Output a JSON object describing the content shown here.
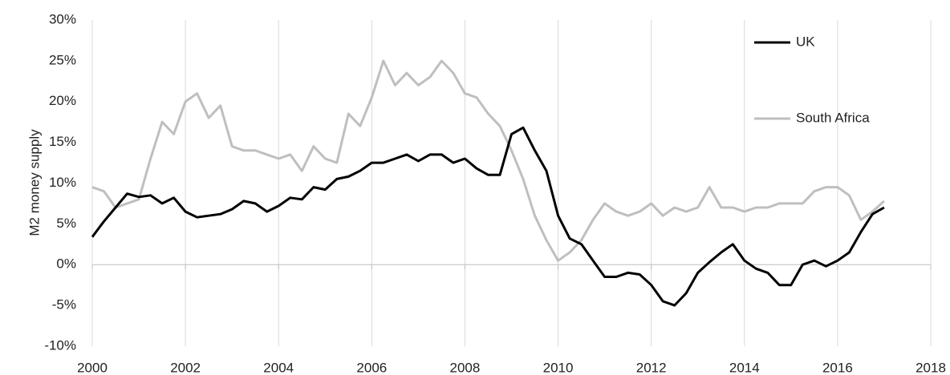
{
  "chart_data": {
    "type": "line",
    "ylabel": "M2 money supply",
    "x": [
      2000,
      2000.25,
      2000.5,
      2000.75,
      2001,
      2001.25,
      2001.5,
      2001.75,
      2002,
      2002.25,
      2002.5,
      2002.75,
      2003,
      2003.25,
      2003.5,
      2003.75,
      2004,
      2004.25,
      2004.5,
      2004.75,
      2005,
      2005.25,
      2005.5,
      2005.75,
      2006,
      2006.25,
      2006.5,
      2006.75,
      2007,
      2007.25,
      2007.5,
      2007.75,
      2008,
      2008.25,
      2008.5,
      2008.75,
      2009,
      2009.25,
      2009.5,
      2009.75,
      2010,
      2010.25,
      2010.5,
      2010.75,
      2011,
      2011.25,
      2011.5,
      2011.75,
      2012,
      2012.25,
      2012.5,
      2012.75,
      2013,
      2013.25,
      2013.5,
      2013.75,
      2014,
      2014.25,
      2014.5,
      2014.75,
      2015,
      2015.25,
      2015.5,
      2015.75,
      2016,
      2016.25,
      2016.5,
      2016.75,
      2017
    ],
    "series": [
      {
        "name": "UK",
        "color": "#000000",
        "values": [
          3.4,
          5.3,
          7.0,
          8.7,
          8.3,
          8.5,
          7.5,
          8.2,
          6.5,
          5.8,
          6.0,
          6.2,
          6.8,
          7.8,
          7.5,
          6.5,
          7.2,
          8.2,
          8.0,
          9.5,
          9.2,
          10.5,
          10.8,
          11.5,
          12.5,
          12.5,
          13.0,
          13.5,
          12.7,
          13.5,
          13.5,
          12.5,
          13.0,
          11.8,
          11.0,
          11.0,
          16.0,
          16.8,
          14.0,
          11.5,
          6.0,
          3.2,
          2.5,
          0.5,
          -1.5,
          -1.5,
          -1.0,
          -1.2,
          -2.5,
          -4.5,
          -5.0,
          -3.5,
          -1.0,
          0.3,
          1.5,
          2.5,
          0.5,
          -0.5,
          -1.0,
          -2.5,
          -2.5,
          0.0,
          0.5,
          -0.2,
          0.5,
          1.5,
          4.0,
          6.2,
          7.0
        ]
      },
      {
        "name": "South Africa",
        "color": "#bfbfbf",
        "values": [
          9.5,
          9.0,
          7.0,
          7.5,
          8.0,
          13.0,
          17.5,
          16.0,
          20.0,
          21.0,
          18.0,
          19.5,
          14.5,
          14.0,
          14.0,
          13.5,
          13.0,
          13.5,
          11.5,
          14.5,
          13.0,
          12.5,
          18.5,
          17.0,
          20.5,
          25.0,
          22.0,
          23.5,
          22.0,
          23.0,
          25.0,
          23.5,
          21.0,
          20.5,
          18.5,
          17.0,
          14.0,
          10.5,
          6.0,
          3.0,
          0.5,
          1.5,
          3.0,
          5.5,
          7.5,
          6.5,
          6.0,
          6.5,
          7.5,
          6.0,
          7.0,
          6.5,
          7.0,
          9.5,
          7.0,
          7.0,
          6.5,
          7.0,
          7.0,
          7.5,
          7.5,
          7.5,
          9.0,
          9.5,
          9.5,
          8.5,
          5.5,
          6.5,
          7.8
        ]
      }
    ],
    "xlim": [
      2000,
      2018
    ],
    "xticks": [
      2000,
      2002,
      2004,
      2006,
      2008,
      2010,
      2012,
      2014,
      2016,
      2018
    ],
    "ylim": [
      -10,
      30
    ],
    "yticks": [
      {
        "value": -10,
        "label": "-10%"
      },
      {
        "value": -5,
        "label": "-5%"
      },
      {
        "value": 0,
        "label": "0%"
      },
      {
        "value": 5,
        "label": "5%"
      },
      {
        "value": 10,
        "label": "10%"
      },
      {
        "value": 15,
        "label": "15%"
      },
      {
        "value": 20,
        "label": "20%"
      },
      {
        "value": 25,
        "label": "25%"
      },
      {
        "value": 30,
        "label": "30%"
      }
    ],
    "grid": true,
    "legend": "upper right"
  }
}
